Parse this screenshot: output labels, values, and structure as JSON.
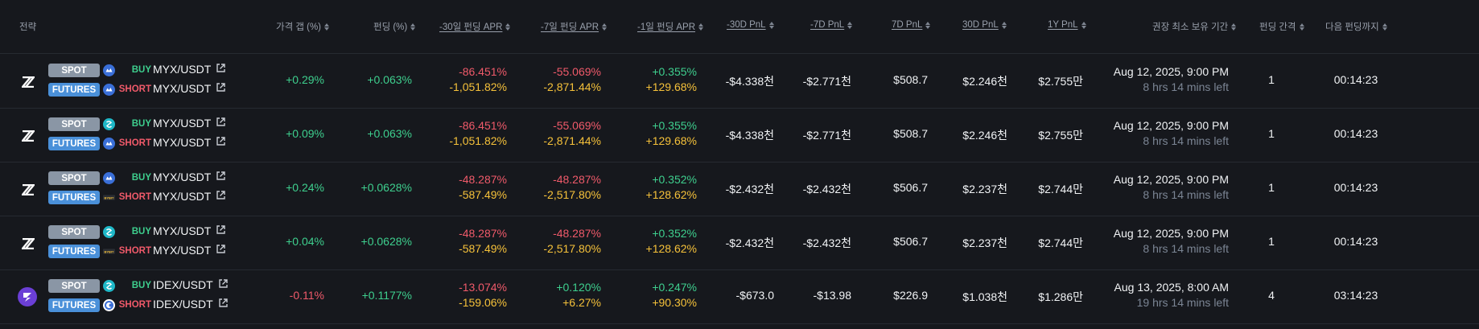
{
  "headers": {
    "strategy": "전략",
    "price_gap": "가격 갭 (%)",
    "funding": "펀딩 (%)",
    "apr30": "-30일 펀딩 APR",
    "apr7": "-7일 펀딩 APR",
    "apr1": "-1일 펀딩 APR",
    "pnl30m": "-30D PnL",
    "pnl7m": "-7D PnL",
    "pnl7": "7D PnL",
    "pnl30": "30D PnL",
    "pnl1y": "1Y PnL",
    "hold": "권장 최소 보유 기간",
    "interval": "펀딩 간격",
    "next": "다음 펀딩까지"
  },
  "colors": {
    "positive": "#3ecf8e",
    "negative": "#f05a6a",
    "warning": "#f5c13a",
    "spot_badge": "#8a96a5",
    "futures_badge": "#4a90d9"
  },
  "rows": [
    {
      "exchange_icon": "x-logo-icon",
      "spot": {
        "badge": "SPOT",
        "ex_icon": "cloud-exchange-icon",
        "side": "BUY",
        "pair": "MYX/USDT"
      },
      "fut": {
        "badge": "FUTURES",
        "ex_icon": "cloud-exchange-icon",
        "side": "SHORT",
        "pair": "MYX/USDT"
      },
      "gap": "+0.29%",
      "funding": "+0.063%",
      "apr30_a": "-86.451%",
      "apr30_b": "-1,051.82%",
      "apr7_a": "-55.069%",
      "apr7_b": "-2,871.44%",
      "apr1_a": "+0.355%",
      "apr1_b": "+129.68%",
      "pnl30m": "-$4.338천",
      "pnl7m": "-$2.771천",
      "pnl7": "$508.7",
      "pnl30": "$2.246천",
      "pnl1y": "$2.755만",
      "hold_date": "Aug 12, 2025, 9:00 PM",
      "hold_left": "8 hrs 14 mins left",
      "interval": "1",
      "next": "00:14:23"
    },
    {
      "exchange_icon": "x-logo-icon",
      "spot": {
        "badge": "SPOT",
        "ex_icon": "swirl-exchange-icon",
        "side": "BUY",
        "pair": "MYX/USDT"
      },
      "fut": {
        "badge": "FUTURES",
        "ex_icon": "cloud-exchange-icon",
        "side": "SHORT",
        "pair": "MYX/USDT"
      },
      "gap": "+0.09%",
      "funding": "+0.063%",
      "apr30_a": "-86.451%",
      "apr30_b": "-1,051.82%",
      "apr7_a": "-55.069%",
      "apr7_b": "-2,871.44%",
      "apr1_a": "+0.355%",
      "apr1_b": "+129.68%",
      "pnl30m": "-$4.338천",
      "pnl7m": "-$2.771천",
      "pnl7": "$508.7",
      "pnl30": "$2.246천",
      "pnl1y": "$2.755만",
      "hold_date": "Aug 12, 2025, 9:00 PM",
      "hold_left": "8 hrs 14 mins left",
      "interval": "1",
      "next": "00:14:23"
    },
    {
      "exchange_icon": "x-logo-icon",
      "spot": {
        "badge": "SPOT",
        "ex_icon": "cloud-exchange-icon",
        "side": "BUY",
        "pair": "MYX/USDT"
      },
      "fut": {
        "badge": "FUTURES",
        "ex_icon": "bybit-exchange-icon",
        "side": "SHORT",
        "pair": "MYX/USDT"
      },
      "gap": "+0.24%",
      "funding": "+0.0628%",
      "apr30_a": "-48.287%",
      "apr30_b": "-587.49%",
      "apr7_a": "-48.287%",
      "apr7_b": "-2,517.80%",
      "apr1_a": "+0.352%",
      "apr1_b": "+128.62%",
      "pnl30m": "-$2.432천",
      "pnl7m": "-$2.432천",
      "pnl7": "$506.7",
      "pnl30": "$2.237천",
      "pnl1y": "$2.744만",
      "hold_date": "Aug 12, 2025, 9:00 PM",
      "hold_left": "8 hrs 14 mins left",
      "interval": "1",
      "next": "00:14:23"
    },
    {
      "exchange_icon": "x-logo-icon",
      "spot": {
        "badge": "SPOT",
        "ex_icon": "swirl-exchange-icon",
        "side": "BUY",
        "pair": "MYX/USDT"
      },
      "fut": {
        "badge": "FUTURES",
        "ex_icon": "bybit-exchange-icon",
        "side": "SHORT",
        "pair": "MYX/USDT"
      },
      "gap": "+0.04%",
      "funding": "+0.0628%",
      "apr30_a": "-48.287%",
      "apr30_b": "-587.49%",
      "apr7_a": "-48.287%",
      "apr7_b": "-2,517.80%",
      "apr1_a": "+0.352%",
      "apr1_b": "+128.62%",
      "pnl30m": "-$2.432천",
      "pnl7m": "-$2.432천",
      "pnl7": "$506.7",
      "pnl30": "$2.237천",
      "pnl1y": "$2.744만",
      "hold_date": "Aug 12, 2025, 9:00 PM",
      "hold_left": "8 hrs 14 mins left",
      "interval": "1",
      "next": "00:14:23"
    },
    {
      "exchange_icon": "idex-logo-icon",
      "spot": {
        "badge": "SPOT",
        "ex_icon": "swirl-exchange-icon",
        "side": "BUY",
        "pair": "IDEX/USDT"
      },
      "fut": {
        "badge": "FUTURES",
        "ex_icon": "circle-exchange-icon",
        "side": "SHORT",
        "pair": "IDEX/USDT"
      },
      "gap": "-0.11%",
      "funding": "+0.1177%",
      "apr30_a": "-13.074%",
      "apr30_b": "-159.06%",
      "apr7_a": "+0.120%",
      "apr7_b": "+6.27%",
      "apr1_a": "+0.247%",
      "apr1_b": "+90.30%",
      "pnl30m": "-$673.0",
      "pnl7m": "-$13.98",
      "pnl7": "$226.9",
      "pnl30": "$1.038천",
      "pnl1y": "$1.286만",
      "hold_date": "Aug 13, 2025, 8:00 AM",
      "hold_left": "19 hrs 14 mins left",
      "interval": "4",
      "next": "03:14:23"
    }
  ]
}
